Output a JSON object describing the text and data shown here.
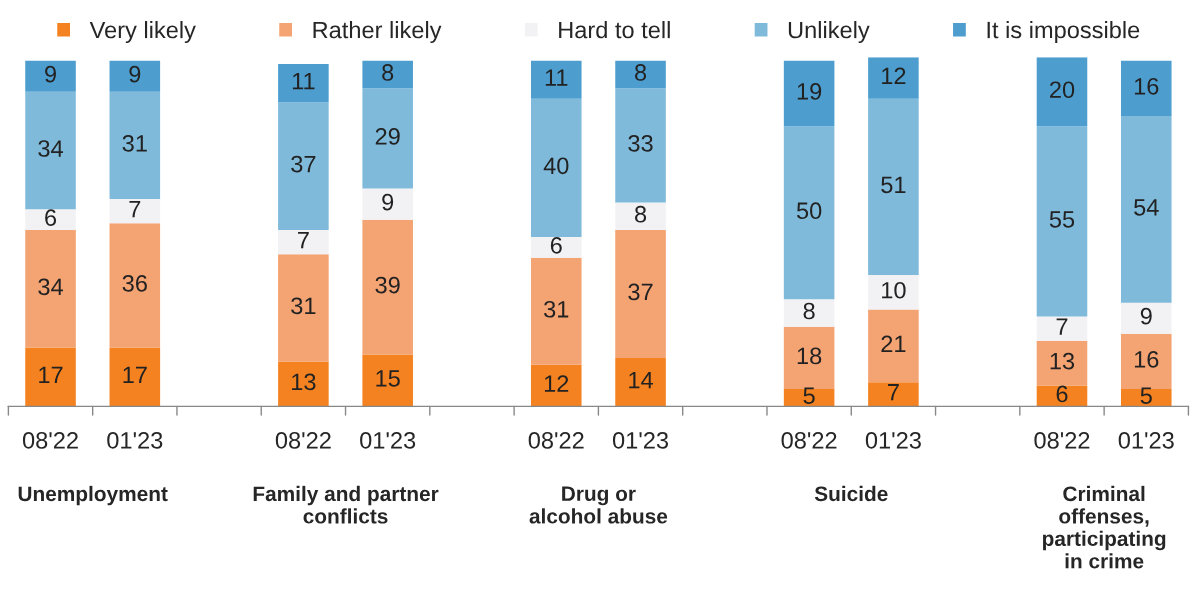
{
  "chart_data": {
    "type": "bar",
    "stacked": true,
    "data_labels": true,
    "legend": "top",
    "grid": false,
    "tick_labels": "x",
    "ylim": [
      0,
      101
    ],
    "categories": [
      "08'22",
      "01'23",
      null,
      "08'22",
      "01'23",
      null,
      "08'22",
      "01'23",
      null,
      "08'22",
      "01'23",
      null,
      "08'22",
      "01'23"
    ],
    "series": [
      {
        "name": "Very likely",
        "color": "#f58220",
        "values": [
          17,
          17,
          null,
          13,
          15,
          null,
          12,
          14,
          null,
          5,
          7,
          null,
          6,
          5
        ]
      },
      {
        "name": "Rather likely",
        "color": "#f4a373",
        "values": [
          34,
          36,
          null,
          31,
          39,
          null,
          31,
          37,
          null,
          18,
          21,
          null,
          13,
          16
        ]
      },
      {
        "name": "Hard to tell",
        "color": "#f2f2f4",
        "values": [
          6,
          7,
          null,
          7,
          9,
          null,
          6,
          8,
          null,
          8,
          10,
          null,
          7,
          9
        ]
      },
      {
        "name": "Unlikely",
        "color": "#7fbadb",
        "values": [
          34,
          31,
          null,
          37,
          29,
          null,
          40,
          33,
          null,
          50,
          51,
          null,
          55,
          54
        ]
      },
      {
        "name": "It is impossible",
        "color": "#4d9ecf",
        "values": [
          9,
          9,
          null,
          11,
          8,
          null,
          11,
          8,
          null,
          19,
          12,
          null,
          20,
          16
        ]
      }
    ],
    "annotations": [
      "Unemployment",
      "Family and partner\nconflicts",
      "Drug or\nalcohol abuse",
      "Suicide",
      "Criminal\noffenses,\nparticipating\nin crime"
    ]
  }
}
